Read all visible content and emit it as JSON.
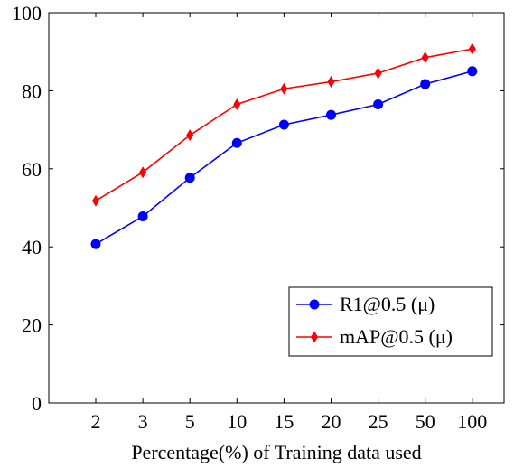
{
  "chart_data": {
    "type": "line",
    "categories": [
      "2",
      "3",
      "5",
      "10",
      "15",
      "20",
      "25",
      "50",
      "100"
    ],
    "xlabel": "Percentage(%) of Training data used",
    "ylabel": "",
    "ylim": [
      0,
      100
    ],
    "yticks": [
      0,
      20,
      40,
      60,
      80,
      100
    ],
    "grid": false,
    "legend_position": "bottom-right",
    "series": [
      {
        "name": "R1@0.5 (μ)",
        "color": "#0000ff",
        "marker": "circle",
        "values": [
          40.7,
          47.8,
          57.7,
          66.6,
          71.3,
          73.8,
          76.5,
          81.7,
          85.0
        ]
      },
      {
        "name": "mAP@0.5 (μ)",
        "color": "#ff0000",
        "marker": "diamond",
        "values": [
          51.8,
          59.1,
          68.6,
          76.5,
          80.5,
          82.3,
          84.5,
          88.5,
          90.7
        ]
      }
    ]
  }
}
